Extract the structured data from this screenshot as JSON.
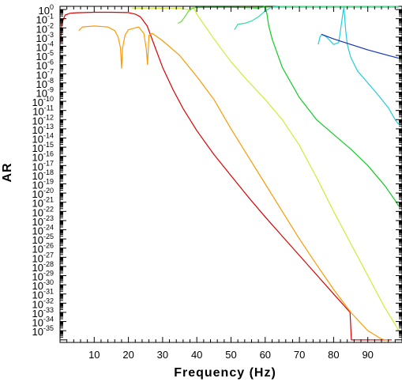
{
  "chart_data": {
    "type": "line",
    "title": "",
    "xlabel": "Frequency (Hz)",
    "ylabel": "AR",
    "xlim": [
      0,
      100
    ],
    "ylim_log10": [
      -36,
      0
    ],
    "y_scale": "log",
    "grid": false,
    "legend": "none",
    "x_ticks": [
      10,
      20,
      30,
      40,
      50,
      60,
      70,
      80,
      90
    ],
    "x_tick_labels": [
      "10",
      "20",
      "30",
      "40",
      "50",
      "60",
      "70",
      "80",
      "90"
    ],
    "y_tick_base": "10",
    "y_tick_exponents": [
      "0",
      "-1",
      "-2",
      "-3",
      "-4",
      "-5",
      "-6",
      "-7",
      "-8",
      "-9",
      "-10",
      "-11",
      "-12",
      "-13",
      "-14",
      "-15",
      "-16",
      "-17",
      "-18",
      "-19",
      "-20",
      "-21",
      "-22",
      "-23",
      "-24",
      "-25",
      "-26",
      "-27",
      "-28",
      "-29",
      "-30",
      "-31",
      "-32",
      "-33",
      "-34",
      "-35"
    ],
    "series": [
      {
        "color": "#dd0000",
        "x": [
          0.2,
          0.5,
          1.5,
          3,
          5,
          10,
          15,
          20,
          22,
          23.5,
          24.5,
          25.5,
          26.5,
          28,
          30,
          33,
          36,
          40,
          45,
          50,
          55,
          60,
          65,
          70,
          75,
          80,
          84.8,
          85.2,
          90,
          95,
          97
        ],
        "log10_y": [
          -3.6,
          -1.5,
          -0.6,
          -0.4,
          -0.35,
          -0.3,
          -0.3,
          -0.33,
          -0.5,
          -0.8,
          -1.3,
          -1.8,
          -2.8,
          -4.3,
          -6.3,
          -8.7,
          -10.8,
          -13.2,
          -15.8,
          -18.1,
          -20.4,
          -22.6,
          -24.7,
          -26.8,
          -28.9,
          -31.0,
          -33.0,
          -36.0,
          -36.0,
          -36.0,
          -36.0
        ]
      },
      {
        "color": "#ff9900",
        "x": [
          5.5,
          6.5,
          10,
          14,
          16,
          17,
          17.7,
          18,
          18.3,
          19,
          20,
          23,
          24.5,
          25.2,
          25.6,
          26,
          27,
          30,
          35,
          40,
          45,
          50,
          55,
          60,
          65,
          70,
          75,
          80,
          85,
          90,
          94,
          95,
          96
        ],
        "log10_y": [
          -2.3,
          -1.9,
          -1.8,
          -1.9,
          -2.3,
          -3.0,
          -4.2,
          -6.4,
          -4.2,
          -2.8,
          -2.2,
          -1.9,
          -2.6,
          -4.2,
          -6.0,
          -2.8,
          -2.6,
          -3.4,
          -5.0,
          -7.3,
          -9.8,
          -13.0,
          -16.0,
          -19.0,
          -22.0,
          -25.0,
          -27.8,
          -30.5,
          -33.0,
          -35.0,
          -35.9,
          -36.0,
          -36.0
        ]
      },
      {
        "color": "#ccee33",
        "x": [
          21,
          25,
          30,
          35,
          37.5,
          38,
          39,
          40,
          45,
          50,
          55,
          60,
          65,
          70,
          75,
          80,
          85,
          90,
          95,
          98,
          99
        ],
        "log10_y": [
          0.15,
          0.15,
          0.15,
          0.15,
          0.0,
          0.15,
          0.25,
          -0.5,
          -3.2,
          -5.7,
          -7.8,
          -9.8,
          -12.0,
          -14.8,
          -18.3,
          -22.0,
          -25.5,
          -29.0,
          -32.5,
          -34.3,
          -35.0
        ]
      },
      {
        "color": "#66dd33",
        "x": [
          34.5,
          35.5,
          36.5,
          37.5,
          38.5,
          39.5,
          45,
          55,
          65,
          75,
          85,
          99
        ],
        "log10_y": [
          -1.5,
          -1.3,
          -0.8,
          -0.2,
          0.1,
          0.2,
          0.25,
          0.25,
          0.25,
          0.25,
          0.25,
          0.25
        ]
      },
      {
        "color": "#11cc22",
        "x": [
          39.5,
          45,
          50,
          55,
          58,
          59,
          60,
          60.5,
          61,
          62,
          65,
          70,
          75,
          80,
          85,
          90,
          95,
          98,
          99
        ],
        "log10_y": [
          0.25,
          0.25,
          0.25,
          0.2,
          0.15,
          0.25,
          0.35,
          -0.5,
          -1.7,
          -3.2,
          -6.3,
          -9.6,
          -12.0,
          -13.6,
          -15.2,
          -17.0,
          -19.2,
          -20.8,
          -21.4
        ]
      },
      {
        "color": "#33ddaa",
        "x": [
          51,
          52,
          54,
          56,
          58,
          60,
          62,
          65,
          70,
          80,
          99
        ],
        "log10_y": [
          -2.2,
          -1.6,
          -1.5,
          -1.25,
          -0.8,
          -0.15,
          0.3,
          0.35,
          0.35,
          0.35,
          0.35
        ]
      },
      {
        "color": "#22ccdd",
        "x": [
          75.5,
          76,
          76.5,
          78,
          80,
          81.5,
          82.5,
          83,
          83.5,
          84,
          85,
          87,
          90,
          93,
          96,
          98,
          99
        ],
        "log10_y": [
          -3.8,
          -3.0,
          -2.7,
          -3.0,
          -3.8,
          -3.6,
          -1.0,
          0.3,
          -2.2,
          -3.8,
          -5.2,
          -6.7,
          -8.0,
          -9.3,
          -10.7,
          -12.0,
          -12.5
        ]
      },
      {
        "color": "#1133bb",
        "x": [
          76.5,
          80,
          85,
          90,
          95,
          99
        ],
        "log10_y": [
          -2.7,
          -3.2,
          -3.8,
          -4.4,
          -4.9,
          -5.3
        ]
      }
    ]
  }
}
